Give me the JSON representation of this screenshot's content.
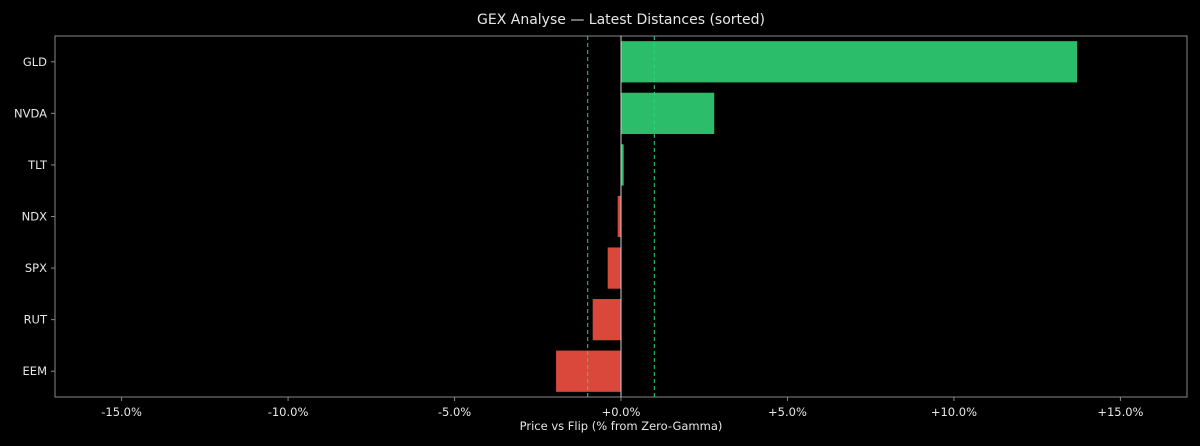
{
  "chart_data": {
    "type": "bar",
    "orientation": "horizontal",
    "title": "GEX Analyse — Latest Distances (sorted)",
    "xlabel": "Price vs Flip (% from Zero-Gamma)",
    "ylabel": "",
    "categories": [
      "GLD",
      "NVDA",
      "TLT",
      "NDX",
      "SPX",
      "RUT",
      "EEM"
    ],
    "values": [
      13.7,
      2.8,
      0.08,
      -0.1,
      -0.4,
      -0.85,
      -1.95
    ],
    "xlim": [
      -17,
      17
    ],
    "xticks": [
      -15,
      -10,
      -5,
      0,
      5,
      10,
      15
    ],
    "xtick_labels": [
      "-15.0%",
      "-10.0%",
      "-5.0%",
      "+0.0%",
      "+5.0%",
      "+10.0%",
      "+15.0%"
    ],
    "threshold_lines": [
      -1,
      1
    ],
    "grid": false,
    "colors": {
      "background": "#000000",
      "positive": "#2bbd6a",
      "negative": "#d9483b",
      "threshold": "#2bd67b",
      "zero_line": "#cfcfcf",
      "axes": "#888888",
      "text": "#e6e6e6"
    }
  }
}
